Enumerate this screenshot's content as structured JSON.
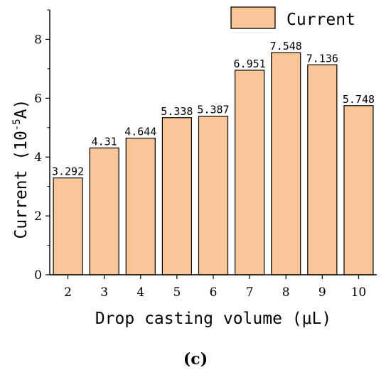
{
  "chart_data": {
    "type": "bar",
    "categories": [
      "2",
      "3",
      "4",
      "5",
      "6",
      "7",
      "8",
      "9",
      "10"
    ],
    "series": [
      {
        "name": "Current",
        "values": [
          3.292,
          4.31,
          4.644,
          5.338,
          5.387,
          6.951,
          7.548,
          7.136,
          5.748
        ],
        "data_labels": [
          "3.292",
          "4.31",
          "4.644",
          "5.338",
          "5.387",
          "6.951",
          "7.548",
          "7.136",
          "5.748"
        ],
        "color": "#f9c797"
      }
    ],
    "xlabel": "Drop casting volume (μL)",
    "ylabel_parts": {
      "before": "Current (10",
      "sup": "-5",
      "after": "A)"
    },
    "ylim": [
      0,
      9
    ],
    "yticks": [
      "0",
      "2",
      "4",
      "6",
      "8"
    ],
    "legend_position": "top-right",
    "grid": false,
    "bar_edge_color": "#000000"
  },
  "panel_label": "(c)"
}
